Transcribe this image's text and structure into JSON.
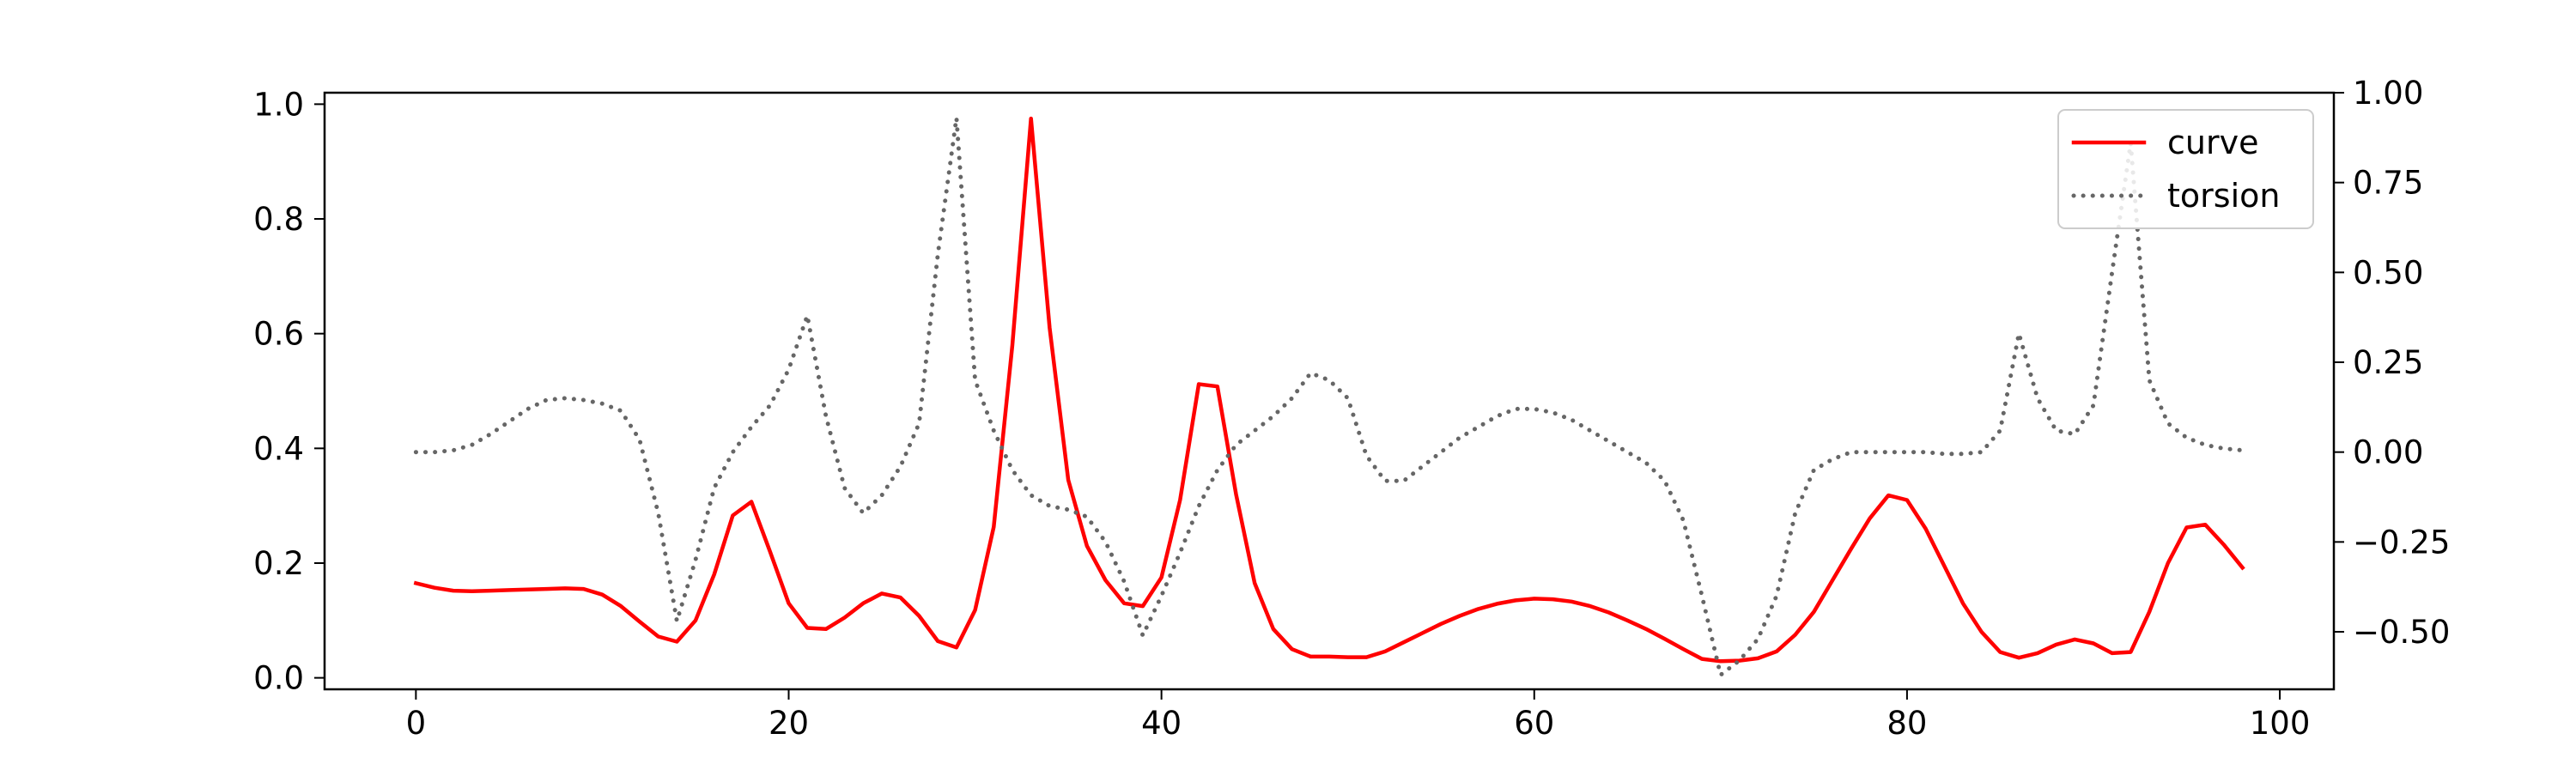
{
  "chart_data": {
    "type": "line",
    "title": "",
    "xlabel": "",
    "ylabel": "",
    "y2label": "",
    "xlim": [
      -4.9,
      102.9
    ],
    "ylim": [
      -0.02,
      1.02
    ],
    "y2lim": [
      -0.66,
      1.0
    ],
    "xticks": [
      0,
      20,
      40,
      60,
      80,
      100
    ],
    "xtick_labels": [
      "0",
      "20",
      "40",
      "60",
      "80",
      "100"
    ],
    "yticks": [
      0.0,
      0.2,
      0.4,
      0.6,
      0.8,
      1.0
    ],
    "ytick_labels": [
      "0.0",
      "0.2",
      "0.4",
      "0.6",
      "0.8",
      "1.0"
    ],
    "y2ticks": [
      -0.5,
      -0.25,
      0.0,
      0.25,
      0.5,
      0.75,
      1.0
    ],
    "y2tick_labels": [
      "−0.50",
      "−0.25",
      "0.00",
      "0.25",
      "0.50",
      "0.75",
      "1.00"
    ],
    "grid": false,
    "legend_position": "top-right",
    "series": [
      {
        "name": "curve",
        "axis": "left",
        "color": "#ff0000",
        "style": "solid",
        "x": [
          0,
          1,
          2,
          3,
          4,
          5,
          6,
          7,
          8,
          9,
          10,
          11,
          12,
          13,
          14,
          15,
          16,
          17,
          18,
          19,
          20,
          21,
          22,
          23,
          24,
          25,
          26,
          27,
          28,
          29,
          30,
          31,
          32,
          33,
          34,
          35,
          36,
          37,
          38,
          39,
          40,
          41,
          42,
          43,
          44,
          45,
          46,
          47,
          48,
          49,
          50,
          51,
          52,
          53,
          54,
          55,
          56,
          57,
          58,
          59,
          60,
          61,
          62,
          63,
          64,
          65,
          66,
          67,
          68,
          69,
          70,
          71,
          72,
          73,
          74,
          75,
          76,
          77,
          78,
          79,
          80,
          81,
          82,
          83,
          84,
          85,
          86,
          87,
          88,
          89,
          90,
          91,
          92,
          93,
          94,
          95,
          96,
          97,
          98
        ],
        "y": [
          0.165,
          0.157,
          0.152,
          0.151,
          0.152,
          0.153,
          0.154,
          0.155,
          0.156,
          0.155,
          0.145,
          0.125,
          0.098,
          0.072,
          0.063,
          0.1,
          0.18,
          0.283,
          0.307,
          0.22,
          0.13,
          0.087,
          0.085,
          0.105,
          0.13,
          0.147,
          0.14,
          0.108,
          0.064,
          0.053,
          0.118,
          0.263,
          0.58,
          0.975,
          0.61,
          0.345,
          0.23,
          0.17,
          0.13,
          0.125,
          0.175,
          0.31,
          0.512,
          0.508,
          0.32,
          0.165,
          0.085,
          0.05,
          0.037,
          0.037,
          0.036,
          0.036,
          0.046,
          0.062,
          0.078,
          0.094,
          0.108,
          0.12,
          0.129,
          0.135,
          0.138,
          0.137,
          0.133,
          0.125,
          0.114,
          0.1,
          0.085,
          0.068,
          0.05,
          0.033,
          0.029,
          0.03,
          0.034,
          0.046,
          0.075,
          0.115,
          0.17,
          0.225,
          0.278,
          0.318,
          0.31,
          0.26,
          0.195,
          0.13,
          0.08,
          0.045,
          0.035,
          0.043,
          0.058,
          0.067,
          0.06,
          0.043,
          0.045,
          0.115,
          0.2,
          0.262,
          0.267,
          0.232,
          0.192
        ]
      },
      {
        "name": "torsion",
        "axis": "right",
        "color": "#666666",
        "style": "dotted",
        "x": [
          0,
          1,
          2,
          3,
          4,
          5,
          6,
          7,
          8,
          9,
          10,
          11,
          12,
          13,
          14,
          15,
          16,
          17,
          18,
          19,
          20,
          21,
          22,
          23,
          24,
          25,
          26,
          27,
          28,
          29,
          30,
          31,
          32,
          33,
          34,
          35,
          36,
          37,
          38,
          39,
          40,
          41,
          42,
          43,
          44,
          45,
          46,
          47,
          48,
          49,
          50,
          51,
          52,
          53,
          54,
          55,
          56,
          57,
          58,
          59,
          60,
          61,
          62,
          63,
          64,
          65,
          66,
          67,
          68,
          69,
          70,
          71,
          72,
          73,
          74,
          75,
          76,
          77,
          78,
          79,
          80,
          81,
          82,
          83,
          84,
          85,
          86,
          87,
          88,
          89,
          90,
          91,
          92,
          93,
          94,
          95,
          96,
          97,
          98
        ],
        "y": [
          0.0,
          0.0,
          0.005,
          0.02,
          0.05,
          0.085,
          0.12,
          0.145,
          0.15,
          0.145,
          0.135,
          0.115,
          0.035,
          -0.17,
          -0.47,
          -0.3,
          -0.1,
          0.0,
          0.07,
          0.13,
          0.23,
          0.38,
          0.1,
          -0.1,
          -0.17,
          -0.12,
          -0.04,
          0.08,
          0.55,
          0.93,
          0.2,
          0.06,
          -0.05,
          -0.12,
          -0.15,
          -0.16,
          -0.18,
          -0.25,
          -0.36,
          -0.51,
          -0.4,
          -0.28,
          -0.15,
          -0.05,
          0.02,
          0.06,
          0.1,
          0.15,
          0.22,
          0.2,
          0.15,
          -0.01,
          -0.08,
          -0.08,
          -0.04,
          0.0,
          0.04,
          0.07,
          0.1,
          0.12,
          0.12,
          0.11,
          0.09,
          0.06,
          0.03,
          0.0,
          -0.03,
          -0.08,
          -0.19,
          -0.4,
          -0.62,
          -0.58,
          -0.52,
          -0.4,
          -0.17,
          -0.05,
          -0.02,
          0.0,
          0.0,
          0.0,
          0.0,
          0.0,
          -0.005,
          -0.005,
          0.0,
          0.06,
          0.33,
          0.15,
          0.06,
          0.05,
          0.13,
          0.5,
          0.86,
          0.2,
          0.08,
          0.04,
          0.02,
          0.01,
          0.005
        ]
      }
    ]
  }
}
